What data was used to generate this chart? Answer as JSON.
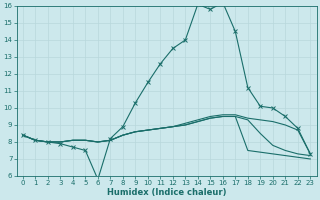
{
  "xlabel": "Humidex (Indice chaleur)",
  "ylabel": "",
  "xlim": [
    -0.5,
    23.5
  ],
  "ylim": [
    6,
    16
  ],
  "xticks": [
    0,
    1,
    2,
    3,
    4,
    5,
    6,
    7,
    8,
    9,
    10,
    11,
    12,
    13,
    14,
    15,
    16,
    17,
    18,
    19,
    20,
    21,
    22,
    23
  ],
  "yticks": [
    6,
    7,
    8,
    9,
    10,
    11,
    12,
    13,
    14,
    15,
    16
  ],
  "bg_color": "#cce8ec",
  "grid_color": "#b8d8dc",
  "line_color": "#1a6e6a",
  "line1_x": [
    0,
    1,
    2,
    3,
    4,
    5,
    6,
    7,
    8,
    9,
    10,
    11,
    12,
    13,
    14,
    15,
    16,
    17,
    18,
    19,
    20,
    21,
    22,
    23
  ],
  "line1_y": [
    8.4,
    8.1,
    8.0,
    7.9,
    7.7,
    7.5,
    5.8,
    8.2,
    8.9,
    10.3,
    11.5,
    12.6,
    13.5,
    14.0,
    16.1,
    15.8,
    16.2,
    14.5,
    11.2,
    10.1,
    10.0,
    9.5,
    8.8,
    7.3
  ],
  "line2_x": [
    0,
    1,
    2,
    3,
    4,
    5,
    6,
    7,
    8,
    9,
    10,
    11,
    12,
    13,
    14,
    15,
    16,
    17,
    18,
    19,
    20,
    21,
    22,
    23
  ],
  "line2_y": [
    8.4,
    8.1,
    8.0,
    8.0,
    8.1,
    8.1,
    8.0,
    8.1,
    8.4,
    8.6,
    8.7,
    8.8,
    8.9,
    9.1,
    9.3,
    9.5,
    9.6,
    9.6,
    9.4,
    9.3,
    9.2,
    9.0,
    8.7,
    7.3
  ],
  "line3_x": [
    0,
    1,
    2,
    3,
    4,
    5,
    6,
    7,
    8,
    9,
    10,
    11,
    12,
    13,
    14,
    15,
    16,
    17,
    18,
    19,
    20,
    21,
    22,
    23
  ],
  "line3_y": [
    8.4,
    8.1,
    8.0,
    8.0,
    8.1,
    8.1,
    8.0,
    8.1,
    8.4,
    8.6,
    8.7,
    8.8,
    8.9,
    9.0,
    9.2,
    9.4,
    9.5,
    9.5,
    9.3,
    8.5,
    7.8,
    7.5,
    7.3,
    7.2
  ],
  "line4_x": [
    0,
    1,
    2,
    3,
    4,
    5,
    6,
    7,
    8,
    9,
    10,
    11,
    12,
    13,
    14,
    15,
    16,
    17,
    18,
    19,
    20,
    21,
    22,
    23
  ],
  "line4_y": [
    8.4,
    8.1,
    8.0,
    8.0,
    8.1,
    8.1,
    8.0,
    8.1,
    8.4,
    8.6,
    8.7,
    8.8,
    8.9,
    9.0,
    9.2,
    9.4,
    9.5,
    9.5,
    7.5,
    7.4,
    7.3,
    7.2,
    7.1,
    7.0
  ],
  "xlabel_fontsize": 6.0,
  "tick_fontsize": 5.0
}
